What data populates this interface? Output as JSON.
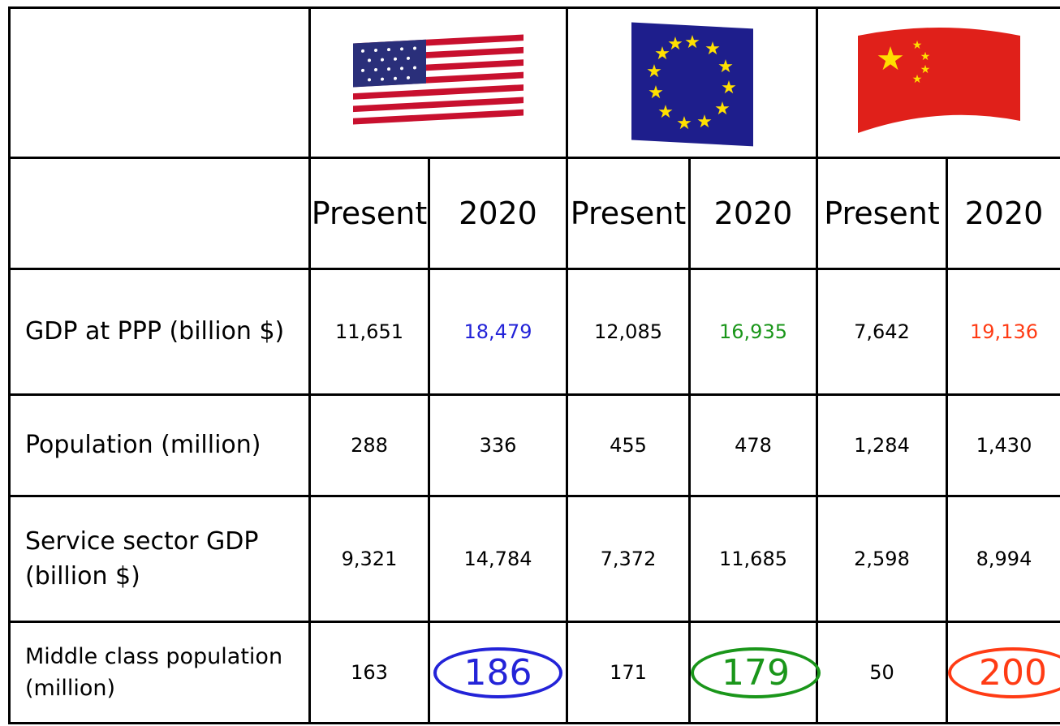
{
  "table": {
    "columns": [
      "Present",
      "2020",
      "Present",
      "2020",
      "Present",
      "2020"
    ],
    "rows": [
      {
        "label": "GDP at PPP (billion $)",
        "values": [
          "11,651",
          "18,479",
          "12,085",
          "16,935",
          "7,642",
          "19,136"
        ]
      },
      {
        "label": "Population (million)",
        "values": [
          "288",
          "336",
          "455",
          "478",
          "1,284",
          "1,430"
        ]
      },
      {
        "label": "Service sector GDP (billion $)",
        "values": [
          "9,321",
          "14,784",
          "7,372",
          "11,685",
          "2,598",
          "8,994"
        ]
      },
      {
        "label": "Middle class population (million)",
        "values": [
          "163",
          "186",
          "171",
          "179",
          "50",
          "200"
        ]
      }
    ]
  }
}
